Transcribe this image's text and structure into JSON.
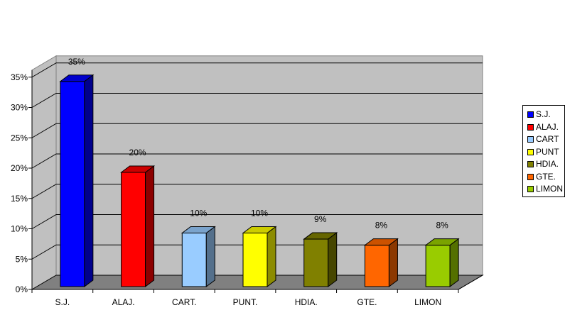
{
  "chart_data": {
    "type": "bar",
    "categories": [
      "S.J.",
      "ALAJ.",
      "CART.",
      "PUNT.",
      "HDIA.",
      "GTE.",
      "LIMON"
    ],
    "values": [
      35,
      20,
      10,
      10,
      9,
      8,
      8
    ],
    "data_labels": [
      "35%",
      "20%",
      "10%",
      "10%",
      "9%",
      "8%",
      "8%"
    ],
    "colors": [
      "#0000ff",
      "#ff0000",
      "#99ccff",
      "#ffff00",
      "#808000",
      "#ff6600",
      "#99cc00"
    ],
    "legend_labels": [
      "S.J.",
      "ALAJ.",
      "CART",
      "PUNT",
      "HDIA.",
      "GTE.",
      "LIMON"
    ],
    "y_ticks": [
      "0%",
      "5%",
      "10%",
      "15%",
      "20%",
      "25%",
      "30%",
      "35%"
    ],
    "ylim": [
      0,
      35
    ],
    "grid": true,
    "three_d": true,
    "legend_position": "right",
    "plot_background": "#c0c0c0",
    "floor_color": "#808080"
  }
}
